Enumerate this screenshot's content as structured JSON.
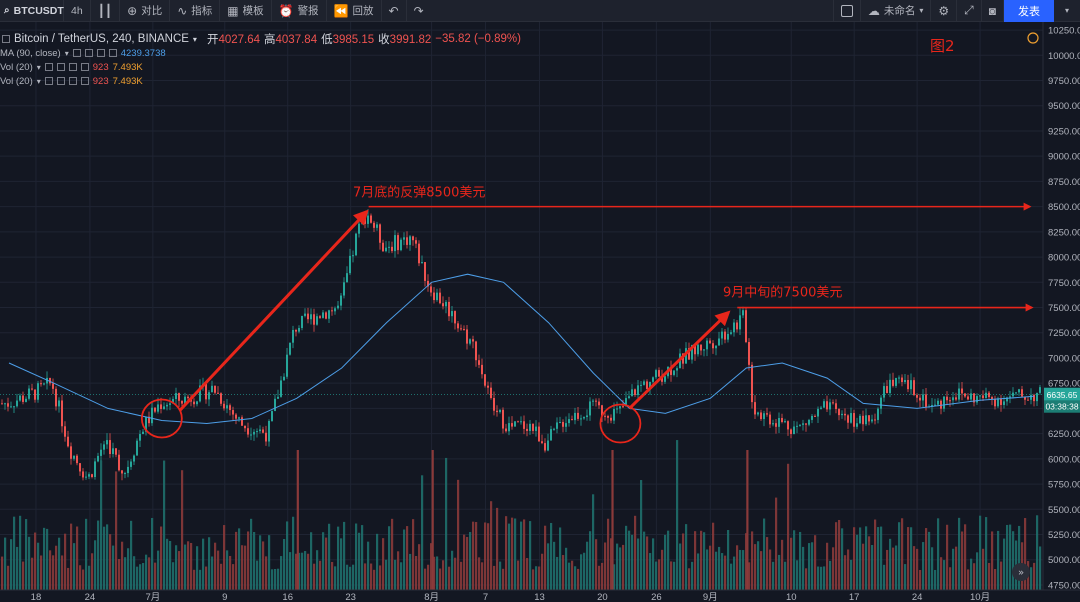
{
  "toolbar": {
    "symbol": "BTCUSDT",
    "interval": "4h",
    "compare": "对比",
    "indicators": "指标",
    "templates": "模板",
    "alert": "警报",
    "replay": "回放",
    "layout_name": "未命名",
    "publish": "发表",
    "icons": [
      "bar-style-icon",
      "compare-plus-icon",
      "indicators-icon",
      "templates-icon",
      "alert-clock-icon",
      "replay-icon",
      "undo-icon",
      "redo-icon",
      "checkbox-icon",
      "cloud-icon",
      "gear-icon",
      "fullscreen-icon",
      "camera-icon",
      "chevron-down-icon"
    ]
  },
  "legend": {
    "title": "Bitcoin / TetherUS, 240, BINANCE",
    "open_label": "开",
    "open": "4027.64",
    "high_label": "高",
    "high": "4037.84",
    "low_label": "低",
    "low": "3985.15",
    "close_label": "收",
    "close": "3991.82",
    "change": "−35.82 (−0.89%)",
    "ma": {
      "name": "MA (90, close)",
      "value": "4239.3738"
    },
    "vol1": {
      "name": "Vol (20)",
      "v1": "923",
      "v2": "7.493K"
    },
    "vol2": {
      "name": "Vol (20)",
      "v1": "923",
      "v2": "7.493K"
    }
  },
  "chart_data": {
    "type": "candlestick",
    "figure_label": "图2",
    "y_ticks": [
      4750,
      5000,
      5250,
      5500,
      5750,
      6000,
      6250,
      6500,
      6750,
      7000,
      7250,
      7500,
      7750,
      8000,
      8250,
      8500,
      8750,
      9000,
      9250,
      9500,
      9750,
      10000,
      10250
    ],
    "x_ticks": [
      "18",
      "24",
      "7月",
      "9",
      "16",
      "23",
      "8月",
      "7",
      "13",
      "20",
      "26",
      "9月",
      "10",
      "17",
      "24",
      "10月"
    ],
    "ylim": [
      4700,
      10330
    ],
    "current_price": "6635.65",
    "countdown": "03:38:38",
    "price_path": [
      {
        "t": "06-15",
        "p": 6550
      },
      {
        "t": "06-18",
        "p": 6650
      },
      {
        "t": "06-20",
        "p": 6750
      },
      {
        "t": "06-22",
        "p": 6100
      },
      {
        "t": "06-24",
        "p": 5800
      },
      {
        "t": "06-26",
        "p": 6200
      },
      {
        "t": "06-28",
        "p": 5850
      },
      {
        "t": "06-30",
        "p": 6300
      },
      {
        "t": "07-02",
        "p": 6550
      },
      {
        "t": "07-05",
        "p": 6600
      },
      {
        "t": "07-08",
        "p": 6700
      },
      {
        "t": "07-11",
        "p": 6350
      },
      {
        "t": "07-14",
        "p": 6250
      },
      {
        "t": "07-17",
        "p": 7300
      },
      {
        "t": "07-20",
        "p": 7450
      },
      {
        "t": "07-22",
        "p": 7500
      },
      {
        "t": "07-24",
        "p": 8250
      },
      {
        "t": "07-25",
        "p": 8450
      },
      {
        "t": "07-27",
        "p": 8100
      },
      {
        "t": "07-30",
        "p": 8200
      },
      {
        "t": "08-01",
        "p": 7700
      },
      {
        "t": "08-03",
        "p": 7500
      },
      {
        "t": "08-06",
        "p": 7100
      },
      {
        "t": "08-08",
        "p": 6500
      },
      {
        "t": "08-10",
        "p": 6300
      },
      {
        "t": "08-12",
        "p": 6350
      },
      {
        "t": "08-14",
        "p": 6150
      },
      {
        "t": "08-16",
        "p": 6400
      },
      {
        "t": "08-19",
        "p": 6500
      },
      {
        "t": "08-22",
        "p": 6450
      },
      {
        "t": "08-24",
        "p": 6700
      },
      {
        "t": "08-27",
        "p": 6850
      },
      {
        "t": "08-30",
        "p": 7050
      },
      {
        "t": "09-02",
        "p": 7200
      },
      {
        "t": "09-05",
        "p": 7400
      },
      {
        "t": "09-06",
        "p": 6500
      },
      {
        "t": "09-08",
        "p": 6400
      },
      {
        "t": "09-11",
        "p": 6300
      },
      {
        "t": "09-14",
        "p": 6500
      },
      {
        "t": "09-17",
        "p": 6400
      },
      {
        "t": "09-19",
        "p": 6350
      },
      {
        "t": "09-21",
        "p": 6750
      },
      {
        "t": "09-24",
        "p": 6700
      },
      {
        "t": "09-26",
        "p": 6500
      },
      {
        "t": "09-28",
        "p": 6650
      },
      {
        "t": "10-01",
        "p": 6600
      },
      {
        "t": "10-04",
        "p": 6600
      },
      {
        "t": "10-07",
        "p": 6635
      }
    ],
    "ma_path": [
      {
        "t": "06-15",
        "p": 6950
      },
      {
        "t": "06-20",
        "p": 6750
      },
      {
        "t": "06-26",
        "p": 6500
      },
      {
        "t": "07-02",
        "p": 6380
      },
      {
        "t": "07-07",
        "p": 6350
      },
      {
        "t": "07-12",
        "p": 6400
      },
      {
        "t": "07-17",
        "p": 6600
      },
      {
        "t": "07-22",
        "p": 6900
      },
      {
        "t": "07-27",
        "p": 7350
      },
      {
        "t": "08-01",
        "p": 7750
      },
      {
        "t": "08-05",
        "p": 7830
      },
      {
        "t": "08-09",
        "p": 7750
      },
      {
        "t": "08-14",
        "p": 7350
      },
      {
        "t": "08-19",
        "p": 6850
      },
      {
        "t": "08-23",
        "p": 6500
      },
      {
        "t": "08-27",
        "p": 6450
      },
      {
        "t": "09-01",
        "p": 6600
      },
      {
        "t": "09-05",
        "p": 6900
      },
      {
        "t": "09-09",
        "p": 6950
      },
      {
        "t": "09-14",
        "p": 6800
      },
      {
        "t": "09-18",
        "p": 6550
      },
      {
        "t": "09-24",
        "p": 6500
      },
      {
        "t": "10-01",
        "p": 6580
      },
      {
        "t": "10-07",
        "p": 6620
      }
    ],
    "annotations": [
      {
        "text": "7月底的反弹8500美元",
        "price": 8500
      },
      {
        "text": "9月中旬的7500美元",
        "price": 7500
      }
    ],
    "highlight_circles": [
      {
        "t": "07-02",
        "p": 6400
      },
      {
        "t": "08-22",
        "p": 6350
      }
    ],
    "colors": {
      "up": "#26a69a",
      "down": "#ef5350",
      "ma": "#4d9ee8",
      "annotation": "#e8261b",
      "volume_up": "#1f6f6b",
      "volume_down": "#8a3a3a"
    }
  }
}
